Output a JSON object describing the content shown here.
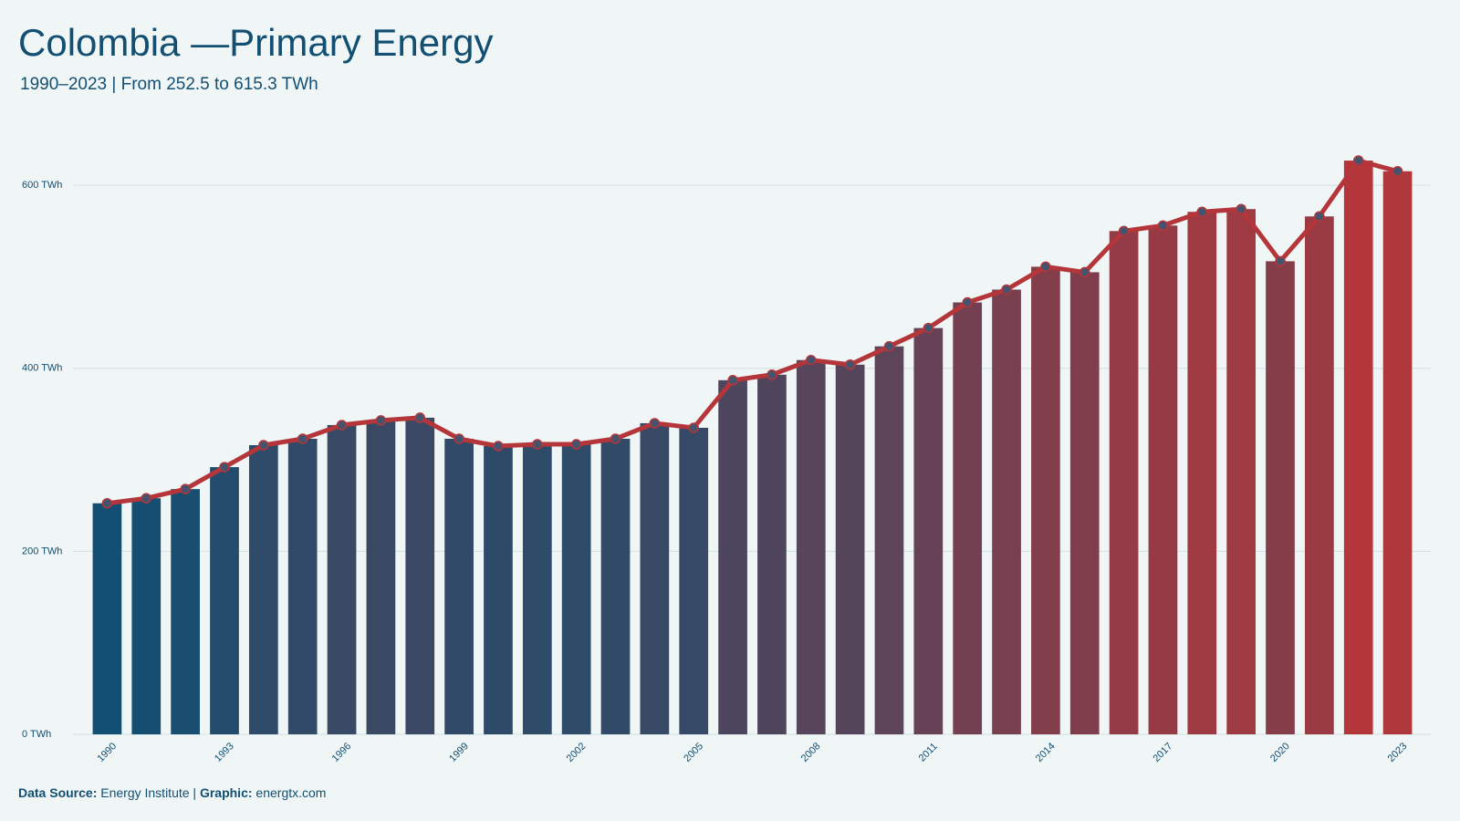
{
  "chart_data": {
    "type": "bar-line",
    "title": "Colombia —Primary Energy",
    "subtitle": "1990–2023 | From 252.5 to 615.3 TWh",
    "categories": [
      "1990",
      null,
      null,
      "1993",
      null,
      null,
      "1996",
      null,
      null,
      "1999",
      null,
      null,
      "2002",
      null,
      null,
      "2005",
      null,
      null,
      "2008",
      null,
      null,
      "2011",
      null,
      null,
      "2014",
      null,
      null,
      "2017",
      null,
      null,
      "2020",
      null,
      null,
      "2023"
    ],
    "values": [
      252.5,
      258,
      268,
      292,
      316,
      323,
      338,
      343,
      346,
      323,
      315,
      317,
      317,
      323,
      340,
      335,
      387,
      393,
      409,
      404,
      424,
      444,
      472,
      486,
      511,
      505,
      550,
      556,
      571,
      574,
      517,
      566,
      627,
      615.3
    ],
    "color_scale": [
      "#124f72",
      "#b5363a"
    ],
    "line_color": "#b5363a",
    "marker_color": "#44546e",
    "ylim": [
      0,
      640
    ],
    "yticks": [
      {
        "value": 0,
        "label": "0 TWh"
      },
      {
        "value": 200,
        "label": "200 TWh"
      },
      {
        "value": 400,
        "label": "400 TWh"
      },
      {
        "value": 600,
        "label": "600 TWh"
      }
    ],
    "grid": true,
    "footer": {
      "source_label": "Data Source:",
      "source": "Energy Institute |",
      "graphic_label": "Graphic:",
      "graphic": "energtx.com"
    }
  }
}
